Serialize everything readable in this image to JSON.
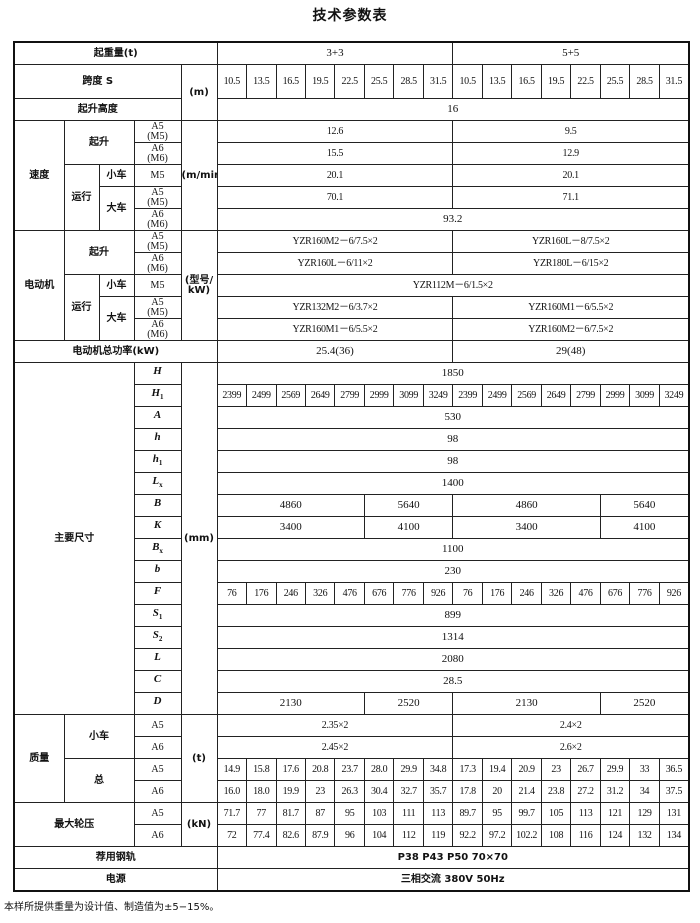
{
  "title": "技术参数表",
  "header": {
    "capacity_label": "起重量(t)",
    "capacities": [
      "3+3",
      "5+5"
    ],
    "span_label": "跨度 S",
    "span_unit": "(m)",
    "spans": [
      "10.5",
      "13.5",
      "16.5",
      "19.5",
      "22.5",
      "25.5",
      "28.5",
      "31.5",
      "10.5",
      "13.5",
      "16.5",
      "19.5",
      "22.5",
      "25.5",
      "28.5",
      "31.5"
    ]
  },
  "lift_height": {
    "label": "起升高度",
    "value": "16"
  },
  "duty": {
    "a5m5": "A5\n(M5)",
    "a6m6": "A6\n(M6)",
    "m5": "M5",
    "a5": "A5",
    "a6": "A6"
  },
  "speed": {
    "label": "速度",
    "unit": "(m/min)",
    "hoist_label": "起升",
    "travel_label": "运行",
    "trolley_label": "小车",
    "crane_label": "大车",
    "hoist": {
      "a5": [
        "12.6",
        "9.5"
      ],
      "a6": [
        "15.5",
        "12.9"
      ]
    },
    "trolley": [
      "20.1",
      "20.1"
    ],
    "crane": {
      "a5": [
        "70.1",
        "71.1"
      ],
      "a6": "93.2"
    }
  },
  "motor": {
    "label": "电动机",
    "unit": "(型号/\nkW)",
    "hoist_label": "起升",
    "travel_label": "运行",
    "trolley_label": "小车",
    "crane_label": "大车",
    "hoist": {
      "a5": [
        "YZR160M2－6/7.5×2",
        "YZR160L－8/7.5×2"
      ],
      "a6": [
        "YZR160L－6/11×2",
        "YZR180L－6/15×2"
      ]
    },
    "trolley": "YZR112M－6/1.5×2",
    "crane": {
      "a5": [
        "YZR132M2－6/3.7×2",
        "YZR160M1－6/5.5×2"
      ],
      "a6": [
        "YZR160M1－6/5.5×2",
        "YZR160M2－6/7.5×2"
      ]
    },
    "total_power_label": "电动机总功率(kW)",
    "total_power": [
      "25.4(36)",
      "29(48)"
    ]
  },
  "dimensions": {
    "label": "主要尺寸",
    "unit": "(mm)",
    "items": [
      {
        "sym": "H",
        "sub": "",
        "values": [
          "1850"
        ]
      },
      {
        "sym": "H",
        "sub": "1",
        "values": [
          "2399",
          "2499",
          "2569",
          "2649",
          "2799",
          "2999",
          "3099",
          "3249",
          "2399",
          "2499",
          "2569",
          "2649",
          "2799",
          "2999",
          "3099",
          "3249"
        ]
      },
      {
        "sym": "A",
        "sub": "",
        "values": [
          "530"
        ]
      },
      {
        "sym": "h",
        "sub": "",
        "values": [
          "98"
        ]
      },
      {
        "sym": "h",
        "sub": "1",
        "values": [
          "98"
        ]
      },
      {
        "sym": "L",
        "sub": "x",
        "values": [
          "1400"
        ]
      },
      {
        "sym": "B",
        "sub": "",
        "values": [
          "4860",
          "5640",
          "4860",
          "5640"
        ]
      },
      {
        "sym": "K",
        "sub": "",
        "values": [
          "3400",
          "4100",
          "3400",
          "4100"
        ]
      },
      {
        "sym": "B",
        "sub": "x",
        "values": [
          "1100"
        ]
      },
      {
        "sym": "b",
        "sub": "",
        "values": [
          "230"
        ]
      },
      {
        "sym": "F",
        "sub": "",
        "values": [
          "76",
          "176",
          "246",
          "326",
          "476",
          "676",
          "776",
          "926",
          "76",
          "176",
          "246",
          "326",
          "476",
          "676",
          "776",
          "926"
        ]
      },
      {
        "sym": "S",
        "sub": "1",
        "values": [
          "899"
        ]
      },
      {
        "sym": "S",
        "sub": "2",
        "values": [
          "1314"
        ]
      },
      {
        "sym": "L",
        "sub": "",
        "values": [
          "2080"
        ]
      },
      {
        "sym": "C",
        "sub": "",
        "values": [
          "28.5"
        ]
      },
      {
        "sym": "D",
        "sub": "",
        "values": [
          "2130",
          "2520",
          "2130",
          "2520"
        ]
      }
    ]
  },
  "mass": {
    "label": "质量",
    "unit": "(t)",
    "trolley_label": "小车",
    "total_label": "总",
    "trolley": {
      "a5": [
        "2.35×2",
        "2.4×2"
      ],
      "a6": [
        "2.45×2",
        "2.6×2"
      ]
    },
    "total": {
      "a5": [
        "14.9",
        "15.8",
        "17.6",
        "20.8",
        "23.7",
        "28.0",
        "29.9",
        "34.8",
        "17.3",
        "19.4",
        "20.9",
        "23",
        "26.7",
        "29.9",
        "33",
        "36.5"
      ],
      "a6": [
        "16.0",
        "18.0",
        "19.9",
        "23",
        "26.3",
        "30.4",
        "32.7",
        "35.7",
        "17.8",
        "20",
        "21.4",
        "23.8",
        "27.2",
        "31.2",
        "34",
        "37.5"
      ]
    }
  },
  "wheel_load": {
    "label": "最大轮压",
    "unit": "(kN)",
    "a5": [
      "71.7",
      "77",
      "81.7",
      "87",
      "95",
      "103",
      "111",
      "113",
      "89.7",
      "95",
      "99.7",
      "105",
      "113",
      "121",
      "129",
      "131"
    ],
    "a6": [
      "72",
      "77.4",
      "82.6",
      "87.9",
      "96",
      "104",
      "112",
      "119",
      "92.2",
      "97.2",
      "102.2",
      "108",
      "116",
      "124",
      "132",
      "134"
    ]
  },
  "rail": {
    "label": "荐用钢轨",
    "value": "P38    P43    P50    70×70"
  },
  "power_supply": {
    "label": "电源",
    "value": "三相交流    380V    50Hz"
  },
  "note": "本样所提供重量为设计值、制造值为±5−15%。"
}
